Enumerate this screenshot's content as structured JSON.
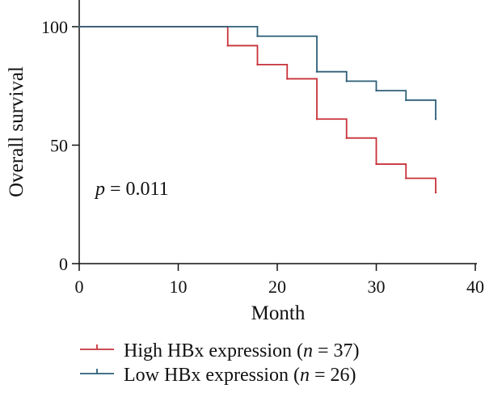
{
  "chart_data": {
    "type": "line",
    "xlabel": "Month",
    "ylabel": "Overall survival",
    "xlim": [
      0,
      40
    ],
    "ylim": [
      0,
      100
    ],
    "xticks": [
      "0",
      "10",
      "20",
      "30",
      "40"
    ],
    "yticks": [
      "0",
      "50",
      "100"
    ],
    "grid": false,
    "legend_position": "bottom-left",
    "annotation": {
      "italic": "p",
      "rest": " = 0.011"
    },
    "series": [
      {
        "name": "High HBx expression",
        "n_label": "37",
        "color": "#c8323a",
        "x": [
          0,
          15,
          18,
          21,
          24,
          27,
          30,
          33,
          36
        ],
        "y": [
          100,
          92,
          84,
          78,
          61,
          53,
          42,
          36,
          30
        ]
      },
      {
        "name": "Low HBx expression",
        "n_label": "26",
        "color": "#2d5f78",
        "x": [
          0,
          18,
          24,
          27,
          30,
          33,
          36
        ],
        "y": [
          100,
          96,
          81,
          77,
          73,
          69,
          61
        ]
      }
    ]
  }
}
